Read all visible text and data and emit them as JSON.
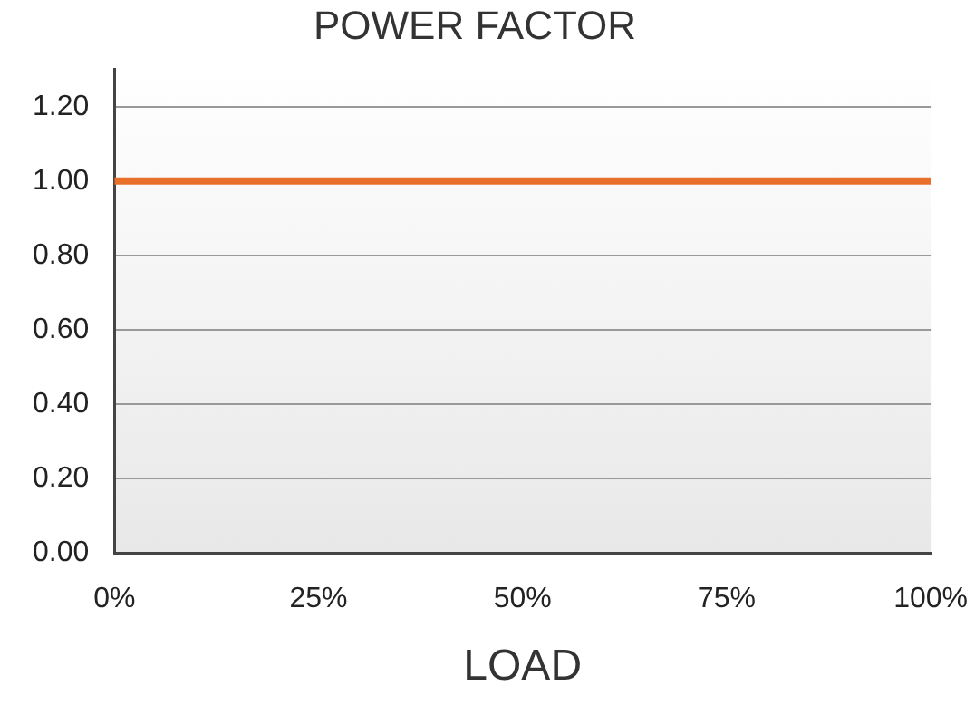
{
  "chart_data": {
    "type": "line",
    "title": "POWER FACTOR",
    "xlabel": "LOAD",
    "x": [
      0,
      100
    ],
    "series": [
      {
        "color": "#e8702a",
        "values": [
          1,
          1
        ]
      }
    ],
    "xlim": [
      0,
      100
    ],
    "xticks": [
      {
        "value": 0,
        "label": "0%"
      },
      {
        "value": 25,
        "label": "25%"
      },
      {
        "value": 50,
        "label": "50%"
      },
      {
        "value": 75,
        "label": "75%"
      },
      {
        "value": 100,
        "label": "100%"
      }
    ],
    "ylim": [
      0,
      1.3
    ],
    "yticks": [
      {
        "value": 0,
        "label": "0.00"
      },
      {
        "value": 0.2,
        "label": "0.20"
      },
      {
        "value": 0.4,
        "label": "0.40"
      },
      {
        "value": 0.6,
        "label": "0.60"
      },
      {
        "value": 0.8,
        "label": "0.80"
      },
      {
        "value": 1,
        "label": "1.00"
      },
      {
        "value": 1.2,
        "label": "1.20"
      }
    ],
    "grid": "y",
    "legend": false,
    "marker": "none",
    "line_style": "solid"
  }
}
